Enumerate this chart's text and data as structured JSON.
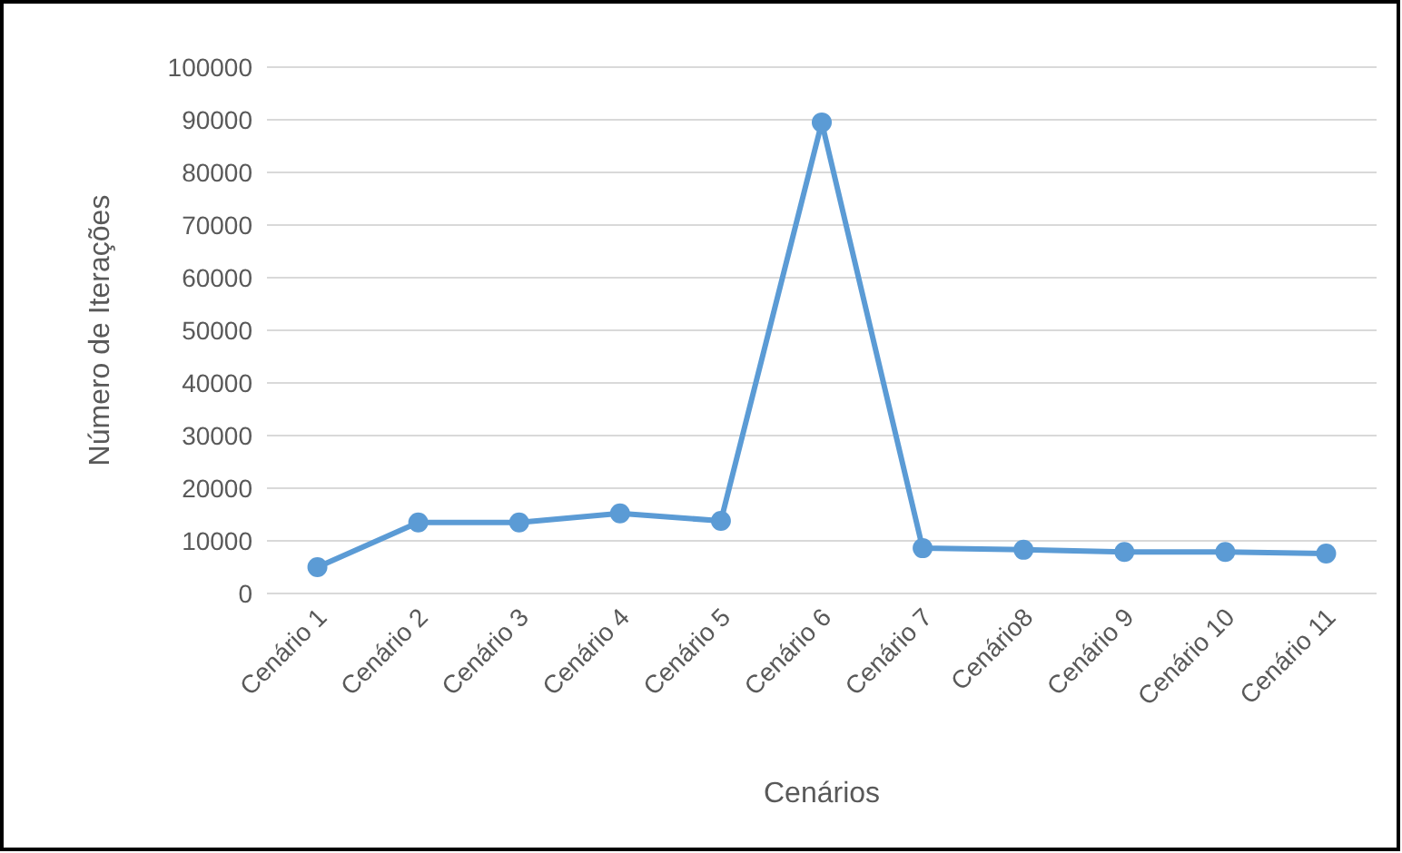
{
  "chart_data": {
    "type": "line",
    "xlabel": "Cenários",
    "ylabel": "Número de Iterações",
    "categories": [
      "Cenário 1",
      "Cenário 2",
      "Cenário 3",
      "Cenário 4",
      "Cenário 5",
      "Cenário 6",
      "Cenário 7",
      "Cenário8",
      "Cenário 9",
      "Cenário 10",
      "Cenário 11"
    ],
    "series": [
      {
        "color": "#5b9bd5",
        "values": [
          5000,
          13500,
          13500,
          15200,
          13800,
          89500,
          8600,
          8300,
          7900,
          7900,
          7600
        ]
      }
    ],
    "ylim": [
      0,
      100000
    ],
    "yticks": [
      0,
      10000,
      20000,
      30000,
      40000,
      50000,
      60000,
      70000,
      80000,
      90000,
      100000
    ],
    "grid": "y",
    "marker": "circle",
    "line_style": "solid"
  }
}
